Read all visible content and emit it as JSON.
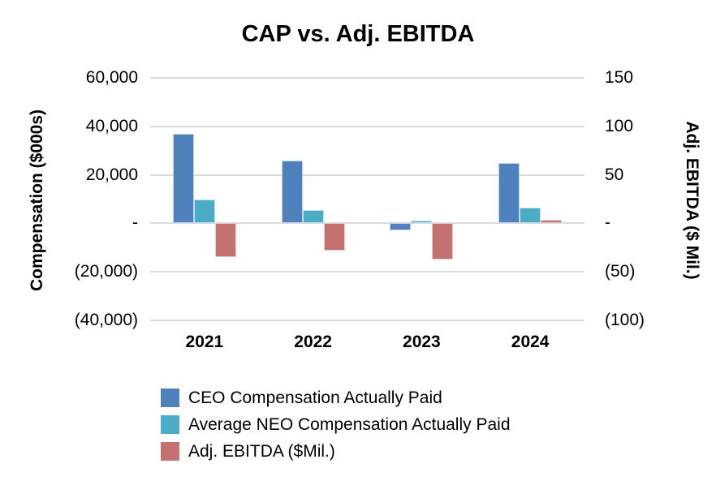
{
  "chart_data": {
    "type": "bar",
    "title": "CAP vs. Adj. EBITDA",
    "categories": [
      "2021",
      "2022",
      "2023",
      "2024"
    ],
    "series": [
      {
        "name": "CEO Compensation Actually Paid",
        "axis": "left",
        "color": "#4F81BD",
        "values": [
          37000,
          26000,
          -3000,
          25000
        ]
      },
      {
        "name": "Average NEO Compensation Actually Paid",
        "axis": "left",
        "color": "#4BACC6",
        "values": [
          10000,
          5500,
          1000,
          6500
        ]
      },
      {
        "name": "Adj. EBITDA ($Mil.)",
        "axis": "right",
        "color": "#C4716F",
        "values": [
          -35,
          -28,
          -37,
          4
        ]
      }
    ],
    "left_axis": {
      "label": "Compensation ($000s)",
      "min": -40000,
      "max": 60000,
      "tick_values": [
        60000,
        40000,
        20000,
        0,
        -20000,
        -40000
      ],
      "tick_labels": [
        "60,000",
        "40,000",
        "20,000",
        "-",
        "(20,000)",
        "(40,000)"
      ]
    },
    "right_axis": {
      "label": "Adj. EBITDA ($ Mil.)",
      "min": -100,
      "max": 150,
      "tick_labels": [
        "150",
        "100",
        "50",
        "-",
        "(50)",
        "(100)"
      ]
    },
    "grid": "horizontal",
    "legend_position": "bottom-left",
    "gridline_color": "#DBDBDB",
    "background_color": "#FFFFFF"
  }
}
